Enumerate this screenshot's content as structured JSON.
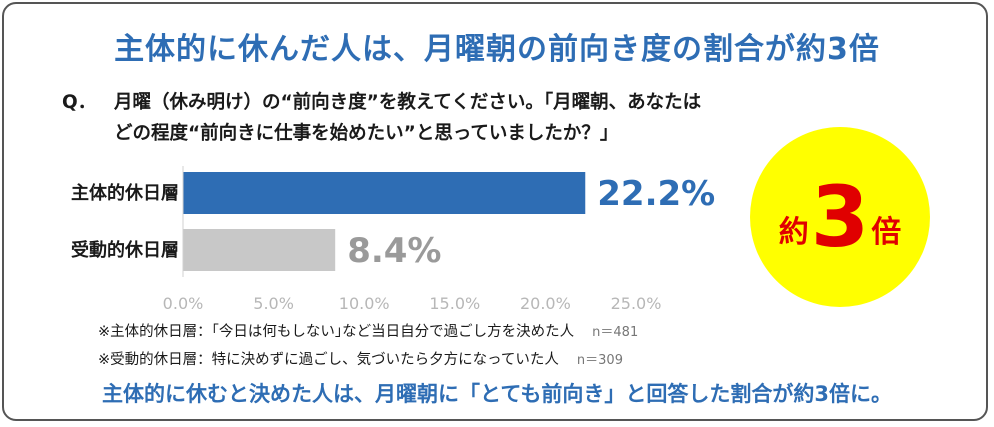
{
  "title": "主体的に休んだ人は、月曜朝の前向き度の割合が約3倍",
  "question": {
    "prefix": "Q．",
    "line1": "月曜（休み明け）の“前向き度”を教えてください。｢月曜朝、あなたは",
    "line2": "どの程度“前向きに仕事を始めたい”と思っていましたか？｣"
  },
  "badge": {
    "prefix": "約",
    "number": "3",
    "suffix": "倍",
    "bg_color": "#ffff00",
    "text_color": "#e00000"
  },
  "notes": [
    {
      "text": "※主体的休日層：｢今日は何もしない｣など当日自分で過ごし方を決めた人",
      "n": "n＝481"
    },
    {
      "text": "※受動的休日層：特に決めずに過ごし、気づいたら夕方になっていた人",
      "n": "n＝309"
    }
  ],
  "conclusion": "主体的に休むと決めた人は、月曜朝に「とても前向き」と回答した割合が約3倍に。",
  "chart_data": {
    "type": "bar",
    "orientation": "horizontal",
    "categories": [
      "主体的休日層",
      "受動的休日層"
    ],
    "values": [
      22.2,
      8.4
    ],
    "value_labels": [
      "22.2%",
      "8.4%"
    ],
    "colors": [
      "#2e6db4",
      "#c8c8c8"
    ],
    "label_colors": [
      "#2e6db4",
      "#9a9a9a"
    ],
    "xlim": [
      0,
      25
    ],
    "xticks": [
      "0.0%",
      "5.0%",
      "10.0%",
      "15.0%",
      "20.0%",
      "25.0%"
    ],
    "xtick_values": [
      0,
      5,
      10,
      15,
      20,
      25
    ],
    "grid": false
  }
}
